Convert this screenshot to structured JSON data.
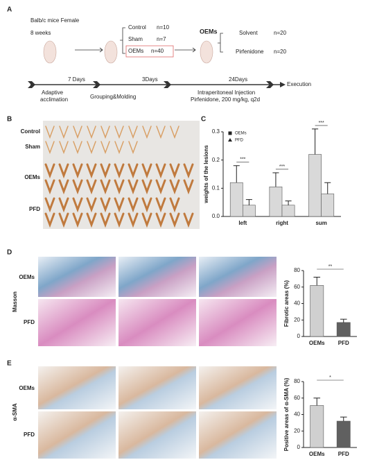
{
  "panel_labels": [
    "A",
    "B",
    "C",
    "D",
    "E"
  ],
  "timeline": {
    "strain": "Balb/c mice Female",
    "age": "8 weeks",
    "groups": [
      {
        "name": "Control",
        "n": "n=10"
      },
      {
        "name": "Sham",
        "n": "n=7"
      },
      {
        "name": "OEMs",
        "n": "n=40"
      }
    ],
    "treatment_header": "OEMs",
    "treatments": [
      {
        "name": "Solvent",
        "n": "n=20"
      },
      {
        "name": "Pirfenidone",
        "n": "n=20"
      }
    ],
    "durations": [
      "7 Days",
      "3Days",
      "24Days"
    ],
    "end": "Execution",
    "stages": [
      "Adaptive",
      "acclimation",
      "Grouping&Molding",
      "Intraperitoneal Injection",
      "Pirfenidone, 200 mg/kg, q2d"
    ]
  },
  "photo_rows": [
    "Control",
    "Sham",
    "OEMs",
    "PFD"
  ],
  "stain_rows": {
    "masson": {
      "stain": "Masson",
      "rows": [
        "OEMs",
        "PFD"
      ]
    },
    "sma": {
      "stain": "α-SMA",
      "rows": [
        "OEMs",
        "PFD"
      ]
    }
  },
  "chart_data": [
    {
      "type": "bar",
      "ylabel": "weights of the lesions",
      "categories": [
        "left",
        "right",
        "sum"
      ],
      "series": [
        {
          "name": "OEMs",
          "color": "#d9d9d9",
          "marker": "square",
          "values": [
            0.12,
            0.105,
            0.22
          ],
          "errors": [
            0.06,
            0.05,
            0.09
          ]
        },
        {
          "name": "PFD",
          "color": "#d9d9d9",
          "marker": "triangle",
          "values": [
            0.04,
            0.04,
            0.08
          ],
          "errors": [
            0.02,
            0.015,
            0.04
          ]
        }
      ],
      "ylim": [
        0,
        0.3
      ],
      "yticks": [
        {
          "value": 0,
          "label": "0.0"
        },
        {
          "value": 0.1,
          "label": "0.1"
        },
        {
          "value": 0.2,
          "label": "0.2"
        },
        {
          "value": 0.3,
          "label": "0.3"
        }
      ],
      "annotations": [
        "***",
        "***",
        "***"
      ]
    },
    {
      "type": "bar",
      "ylabel": "Fibrotic areas (%)",
      "categories": [
        "OEMs",
        "PFD"
      ],
      "series": [
        {
          "colors": [
            "#d0d0d0",
            "#606060"
          ],
          "values": [
            62,
            17
          ],
          "errors": [
            10,
            4
          ]
        }
      ],
      "ylim": [
        0,
        80
      ],
      "yticks": [
        0,
        20,
        40,
        60,
        80
      ],
      "annotations": [
        "**"
      ]
    },
    {
      "type": "bar",
      "ylabel": "Positive areas of α-SMA (%)",
      "categories": [
        "OEMs",
        "PFD"
      ],
      "series": [
        {
          "colors": [
            "#d0d0d0",
            "#606060"
          ],
          "values": [
            51,
            32
          ],
          "errors": [
            9,
            5
          ]
        }
      ],
      "ylim": [
        0,
        80
      ],
      "yticks": [
        0,
        20,
        40,
        60,
        80
      ],
      "annotations": [
        "*"
      ]
    }
  ]
}
